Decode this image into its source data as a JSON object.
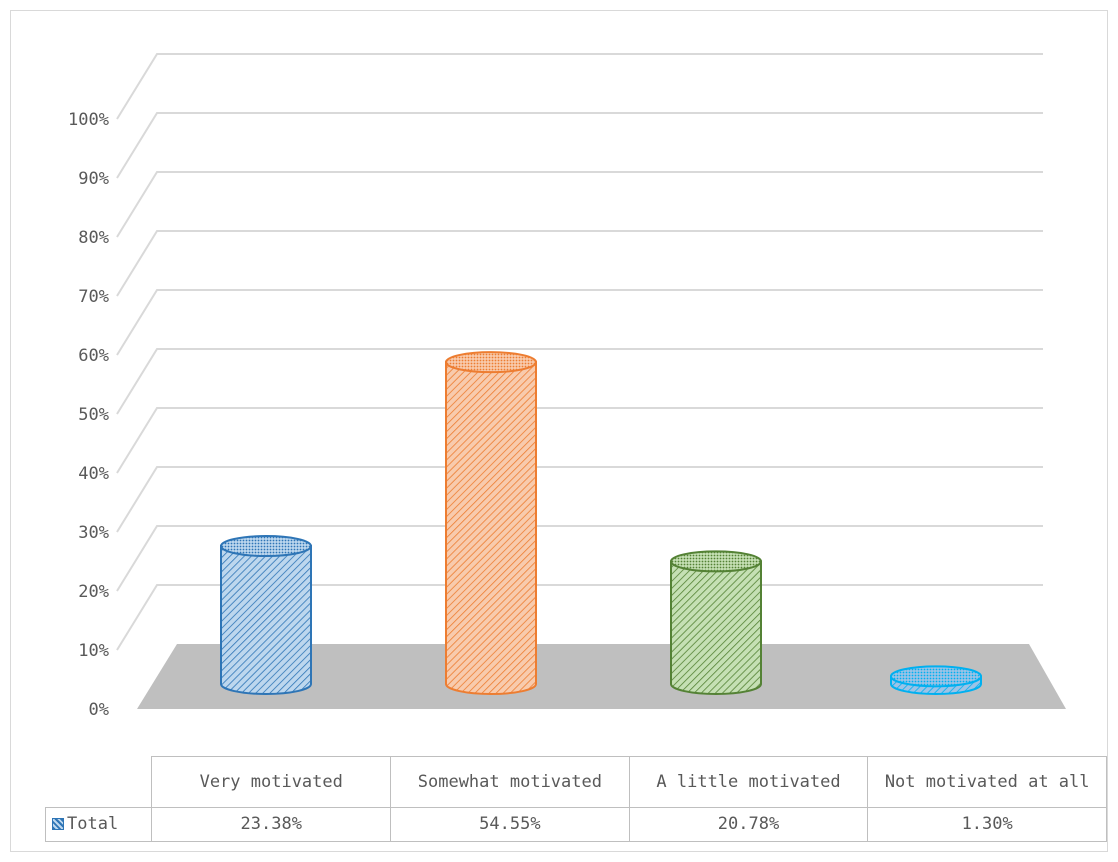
{
  "chart_data": {
    "type": "bar",
    "shape": "cylinder-3d",
    "title": "",
    "xlabel": "",
    "ylabel": "",
    "ylim": [
      0,
      100
    ],
    "y_ticks": [
      "0%",
      "10%",
      "20%",
      "30%",
      "40%",
      "50%",
      "60%",
      "70%",
      "80%",
      "90%",
      "100%"
    ],
    "categories": [
      "Very motivated",
      "Somewhat motivated",
      "A little motivated",
      "Not motivated at all"
    ],
    "series": [
      {
        "name": "Total",
        "values": [
          23.38,
          54.55,
          20.78,
          1.3
        ],
        "value_labels": [
          "23.38%",
          "54.55%",
          "20.78%",
          "1.30%"
        ]
      }
    ],
    "bar_colors": [
      "#2e75b6",
      "#ed7d31",
      "#548235",
      "#00b0f0"
    ],
    "bar_fill_colors": [
      "#bdd7ee",
      "#f8cbad",
      "#c5e0b4",
      "#9dc3e6"
    ],
    "floor_color": "#bfbfbf",
    "gridline_color": "#d9d9d9",
    "grid": true,
    "legend": "data-table"
  }
}
